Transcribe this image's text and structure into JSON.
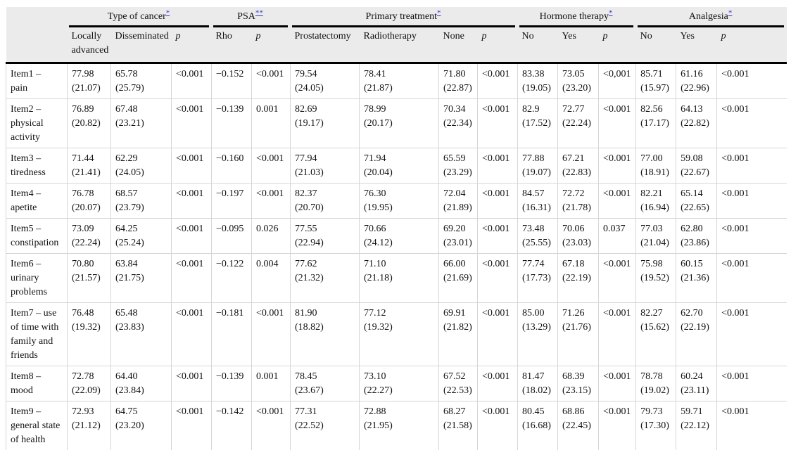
{
  "styles": {
    "header_background": "#ebebeb",
    "grid_line": "#d6d6d6",
    "rule_black": "#000000",
    "footnote_accent": "#3333cc"
  },
  "table": {
    "groups": [
      {
        "label": "Type of cancer",
        "marker": "*"
      },
      {
        "label": "PSA",
        "marker": "**"
      },
      {
        "label": "Primary treatment",
        "marker": "*"
      },
      {
        "label": "Hormone therapy",
        "marker": "*"
      },
      {
        "label": "Analgesia",
        "marker": "*"
      }
    ],
    "sub_headers": [
      "Locally advanced",
      "Disseminated",
      "p",
      "Rho",
      "p",
      "Prostatectomy",
      "Radiotherapy",
      "None",
      "p",
      "No",
      "Yes",
      "p",
      "No",
      "Yes",
      "p"
    ],
    "col_keys": [
      "locally-advanced",
      "disseminated",
      "p-cancer",
      "rho",
      "p-psa",
      "prostatectomy",
      "radiotherapy",
      "none",
      "p-treatment",
      "hormone-no",
      "hormone-yes",
      "p-hormone",
      "analgesia-no",
      "analgesia-yes",
      "p-analgesia"
    ],
    "rows": [
      {
        "label": "Item1 –\npain",
        "cells": [
          "77.98\n(21.07)",
          "65.78\n(25.79)",
          "<0.001",
          "−0.152",
          "<0.001",
          "79.54\n(24.05)",
          "78.41\n(21.87)",
          "71.80\n(22.87)",
          "<0.001",
          "83.38\n(19.05)",
          "73.05\n(23.20)",
          "<0,001",
          "85.71\n(15.97)",
          "61.16\n(22.96)",
          "<0.001"
        ]
      },
      {
        "label": "Item2 –\nphysical\nactivity",
        "cells": [
          "76.89\n(20.82)",
          "67.48\n(23.21)",
          "<0.001",
          "−0.139",
          "0.001",
          "82.69\n(19.17)",
          "78.99\n(20.17)",
          "70.34\n(22.34)",
          "<0.001",
          "82.9\n(17.52)",
          "72.77\n(22.24)",
          "<0.001",
          "82.56\n(17.17)",
          "64.13\n(22.82)",
          "<0.001"
        ]
      },
      {
        "label": "Item3 –\ntiredness",
        "cells": [
          "71.44\n(21.41)",
          "62.29\n(24.05)",
          "<0.001",
          "−0.160",
          "<0.001",
          "77.94\n(21.03)",
          "71.94\n(20.04)",
          "65.59\n(23.29)",
          "<0.001",
          "77.88\n(19.07)",
          "67.21\n(22.83)",
          "<0.001",
          "77.00\n(18.91)",
          "59.08\n(22.67)",
          "<0.001"
        ]
      },
      {
        "label": "Item4 –\napetite",
        "cells": [
          "76.78\n(20.07)",
          "68.57\n(23.79)",
          "<0.001",
          "−0.197",
          "<0.001",
          "82.37\n(20.70)",
          "76.30\n(19.95)",
          "72.04\n(21.89)",
          "<0.001",
          "84.57\n(16.31)",
          "72.72\n(21.78)",
          "<0.001",
          "82.21\n(16.94)",
          "65.14\n(22.65)",
          "<0.001"
        ]
      },
      {
        "label": "Item5 –\nconstipation",
        "cells": [
          "73.09\n(22.24)",
          "64.25\n(25.24)",
          "<0.001",
          "−0.095",
          "0.026",
          "77.55\n(22.94)",
          "70.66\n(24.12)",
          "69.20\n(23.01)",
          "<0.001",
          "73.48\n(25.55)",
          "70.06\n(23.03)",
          "0.037",
          "77.03\n(21.04)",
          "62.80\n(23.86)",
          "<0.001"
        ]
      },
      {
        "label": "Item6 –\nurinary\nproblems",
        "cells": [
          "70.80\n(21.57)",
          "63.84\n(21.75)",
          "<0.001",
          "−0.122",
          "0.004",
          "77.62\n(21.32)",
          "71.10\n(21.18)",
          "66.00\n(21.69)",
          "<0.001",
          "77.74\n(17.73)",
          "67.18\n(22.19)",
          "<0.001",
          "75.98\n(19.52)",
          "60.15\n(21.36)",
          "<0.001"
        ]
      },
      {
        "label": "Item7 – use\nof time with\nfamily and\nfriends",
        "cells": [
          "76.48\n(19.32)",
          "65.48\n(23.83)",
          "<0.001",
          "−0.181",
          "<0.001",
          "81.90\n(18.82)",
          "77.12\n(19.32)",
          "69.91\n(21.82)",
          "<0.001",
          "85.00\n(13.29)",
          "71.26\n(21.76)",
          "<0.001",
          "82.27\n(15.62)",
          "62.70\n(22.19)",
          "<0.001"
        ]
      },
      {
        "label": "Item8 –\nmood",
        "cells": [
          "72.78\n(22.09)",
          "64.40\n(23.84)",
          "<0.001",
          "−0.139",
          "0.001",
          "78.45\n(23.67)",
          "73.10\n(22.27)",
          "67.52\n(22.53)",
          "<0.001",
          "81.47\n(18.02)",
          "68.39\n(23.15)",
          "<0.001",
          "78.78\n(19.02)",
          "60.24\n(23.11)",
          "<0.001"
        ]
      },
      {
        "label": "Item9 –\ngeneral state\nof health",
        "cells": [
          "72.93\n(21.12)",
          "64.75\n(23.20)",
          "<0.001",
          "−0.142",
          "<0.001",
          "77.31\n(22.52)",
          "72.88\n(21.95)",
          "68.27\n(21.58)",
          "<0.001",
          "80.45\n(16.68)",
          "68.86\n(22.45)",
          "<0.001",
          "79.73\n(17.30)",
          "59.71\n(22.12)",
          "<0.001"
        ]
      }
    ]
  }
}
